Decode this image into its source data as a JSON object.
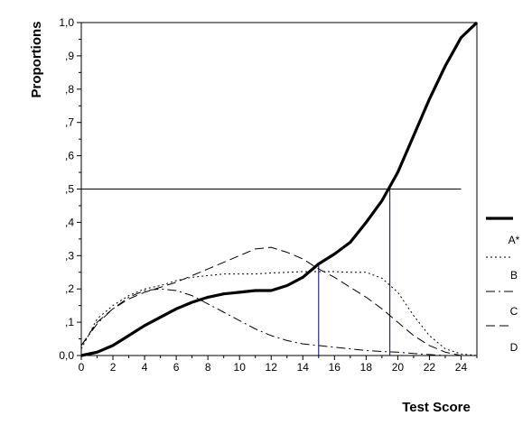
{
  "chart_data": {
    "type": "line",
    "xlabel": "Test Score",
    "ylabel": "Proportions",
    "xlim": [
      0,
      25
    ],
    "ylim": [
      0,
      1
    ],
    "x_ticks": [
      0,
      2,
      4,
      6,
      8,
      10,
      12,
      14,
      16,
      18,
      20,
      22,
      24
    ],
    "y_ticks": [
      {
        "value": 0.0,
        "label": "0,0"
      },
      {
        "value": 0.1,
        "label": ",1"
      },
      {
        "value": 0.2,
        "label": ",2"
      },
      {
        "value": 0.3,
        "label": ",3"
      },
      {
        "value": 0.4,
        "label": ",4"
      },
      {
        "value": 0.5,
        "label": ",5"
      },
      {
        "value": 0.6,
        "label": ",6"
      },
      {
        "value": 0.7,
        "label": ",7"
      },
      {
        "value": 0.8,
        "label": ",8"
      },
      {
        "value": 0.9,
        "label": ",9"
      },
      {
        "value": 1.0,
        "label": "1,0"
      }
    ],
    "series": [
      {
        "name": "A*",
        "style": "solid-thick",
        "color": "#000000",
        "x": [
          0,
          1,
          2,
          3,
          4,
          5,
          6,
          7,
          8,
          9,
          10,
          11,
          12,
          13,
          14,
          15,
          16,
          17,
          18,
          19,
          20,
          21,
          22,
          23,
          24,
          25
        ],
        "y": [
          0.0,
          0.01,
          0.03,
          0.06,
          0.09,
          0.115,
          0.14,
          0.16,
          0.175,
          0.185,
          0.19,
          0.195,
          0.195,
          0.21,
          0.235,
          0.275,
          0.305,
          0.34,
          0.4,
          0.465,
          0.55,
          0.66,
          0.77,
          0.87,
          0.955,
          1.0
        ]
      },
      {
        "name": "B",
        "style": "dotted",
        "color": "#000000",
        "x": [
          0,
          1,
          2,
          3,
          4,
          5,
          6,
          7,
          8,
          9,
          10,
          11,
          12,
          13,
          14,
          15,
          16,
          17,
          18,
          19,
          20,
          21,
          22,
          23,
          24,
          25
        ],
        "y": [
          0.02,
          0.11,
          0.15,
          0.18,
          0.2,
          0.21,
          0.225,
          0.235,
          0.24,
          0.245,
          0.245,
          0.245,
          0.248,
          0.25,
          0.252,
          0.252,
          0.252,
          0.25,
          0.25,
          0.232,
          0.19,
          0.12,
          0.06,
          0.02,
          0.005,
          0.0
        ]
      },
      {
        "name": "C",
        "style": "dash-dot",
        "color": "#000000",
        "x": [
          0,
          1,
          2,
          3,
          4,
          5,
          6,
          7,
          8,
          9,
          10,
          11,
          12,
          13,
          14,
          15,
          16,
          17,
          18,
          19,
          20,
          21,
          22,
          23,
          24,
          25
        ],
        "y": [
          0.03,
          0.095,
          0.14,
          0.175,
          0.195,
          0.2,
          0.195,
          0.18,
          0.155,
          0.13,
          0.105,
          0.08,
          0.06,
          0.045,
          0.035,
          0.03,
          0.025,
          0.02,
          0.015,
          0.012,
          0.01,
          0.006,
          0.003,
          0.0,
          0.0,
          0.0
        ]
      },
      {
        "name": "D",
        "style": "dashed",
        "color": "#000000",
        "x": [
          0,
          1,
          2,
          3,
          4,
          5,
          6,
          7,
          8,
          9,
          10,
          11,
          12,
          13,
          14,
          15,
          16,
          17,
          18,
          19,
          20,
          21,
          22,
          23,
          24,
          25
        ],
        "y": [
          0.03,
          0.1,
          0.14,
          0.17,
          0.19,
          0.205,
          0.22,
          0.24,
          0.26,
          0.28,
          0.3,
          0.32,
          0.325,
          0.31,
          0.29,
          0.26,
          0.235,
          0.205,
          0.175,
          0.14,
          0.1,
          0.06,
          0.03,
          0.01,
          0.0,
          0.0
        ]
      }
    ],
    "reference_lines": [
      {
        "orientation": "horizontal",
        "value": 0.5,
        "x_from": 0,
        "x_to": 24,
        "color": "#000000"
      },
      {
        "orientation": "vertical",
        "value": 15,
        "y_from": 0,
        "y_to": 0.275,
        "color": "#000080"
      },
      {
        "orientation": "vertical",
        "value": 19.5,
        "y_from": 0,
        "y_to": 0.5,
        "color": "#000080"
      }
    ],
    "legend": {
      "placement": "right",
      "entries": [
        "A*",
        "B",
        "C",
        "D"
      ]
    },
    "grid": false
  }
}
